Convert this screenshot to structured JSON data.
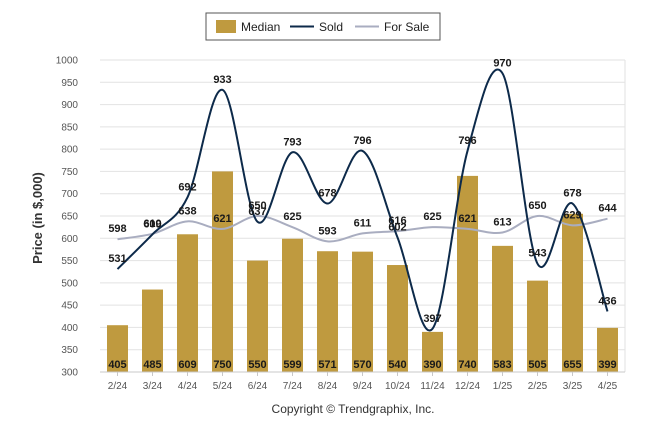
{
  "chart_data": {
    "type": "bar",
    "categories": [
      "2/24",
      "3/24",
      "4/24",
      "5/24",
      "6/24",
      "7/24",
      "8/24",
      "9/24",
      "10/24",
      "11/24",
      "12/24",
      "1/25",
      "2/25",
      "3/25",
      "4/25"
    ],
    "series": [
      {
        "name": "Median",
        "type": "bar",
        "color": "#bf9a3f",
        "values": [
          405,
          485,
          609,
          750,
          550,
          599,
          571,
          570,
          540,
          390,
          740,
          583,
          505,
          655,
          399
        ]
      },
      {
        "name": "Sold",
        "type": "line",
        "color": "#0d2a4a",
        "values": [
          531,
          609,
          692,
          933,
          637,
          793,
          678,
          796,
          602,
          397,
          796,
          970,
          543,
          678,
          436
        ]
      },
      {
        "name": "For Sale",
        "type": "line",
        "color": "#a9adc0",
        "values": [
          598,
          610,
          638,
          621,
          650,
          625,
          593,
          611,
          616,
          625,
          621,
          613,
          650,
          629,
          644
        ]
      }
    ],
    "ylabel": "Price (in $,000)",
    "xlabel": "",
    "ylim": [
      300,
      1000
    ],
    "yticks": [
      "300",
      "350",
      "400",
      "450",
      "500",
      "550",
      "600",
      "650",
      "700",
      "750",
      "800",
      "850",
      "900",
      "950",
      "1000"
    ],
    "grid": true,
    "legend": "top-center",
    "credit": "Copyright © Trendgraphix, Inc."
  }
}
